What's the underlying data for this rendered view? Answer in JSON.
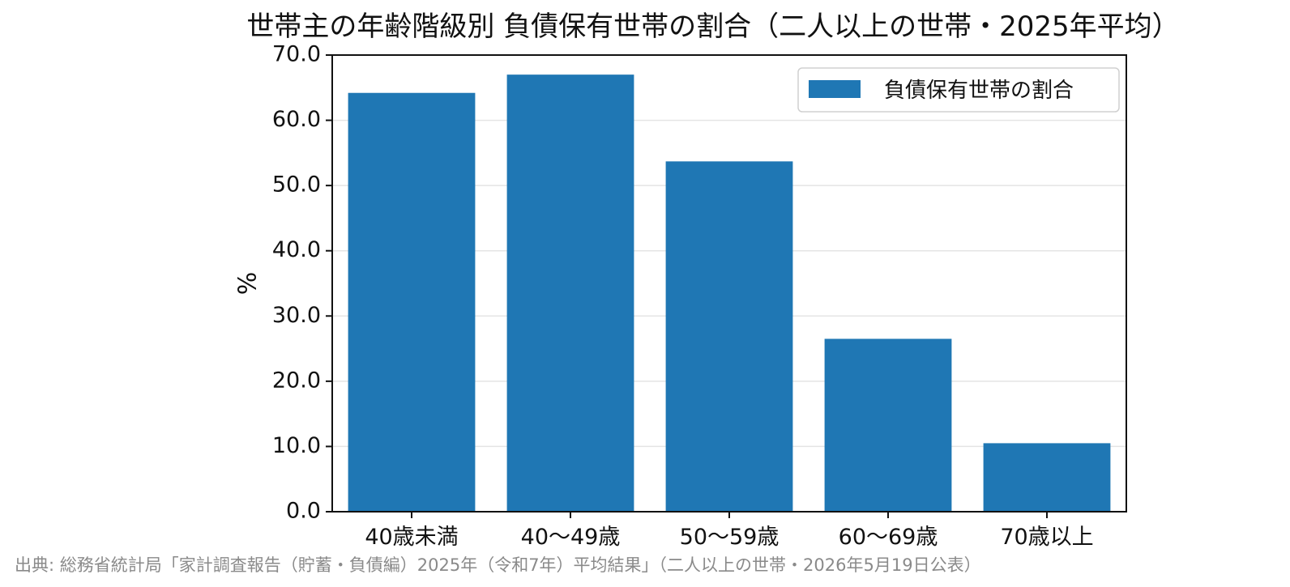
{
  "chart_data": {
    "type": "bar",
    "title": "世帯主の年齢階級別 負債保有世帯の割合（二人以上の世帯・2025年平均）",
    "xlabel": "",
    "ylabel": "%",
    "categories": [
      "40歳未満",
      "40～49歳",
      "50～59歳",
      "60～69歳",
      "70歳以上"
    ],
    "series": [
      {
        "name": "負債保有世帯の割合",
        "values": [
          64.2,
          67.0,
          53.7,
          26.5,
          10.5
        ],
        "color": "#1f77b4"
      }
    ],
    "ylim": [
      0,
      70
    ],
    "yticks": [
      "0.0",
      "10.0",
      "20.0",
      "30.0",
      "40.0",
      "50.0",
      "60.0",
      "70.0"
    ],
    "grid": "y",
    "legend_position": "top-right",
    "source": "出典: 総務省統計局「家計調査報告（貯蓄・負債編）2025年（令和7年）平均結果」（二人以上の世帯・2026年5月19日公表）"
  }
}
